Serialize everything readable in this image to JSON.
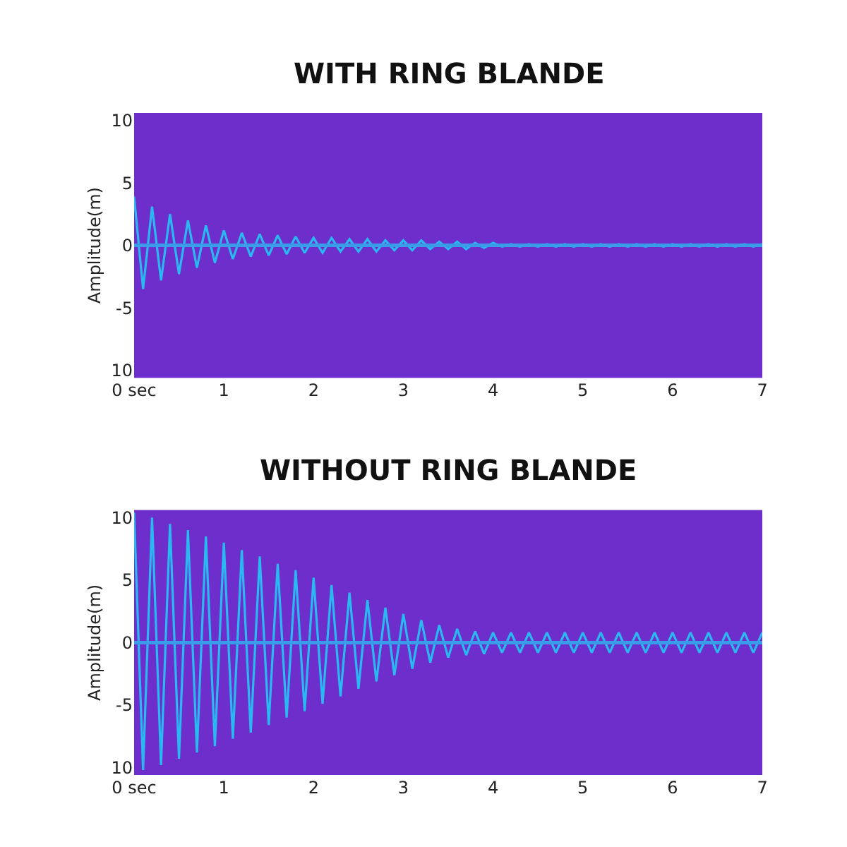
{
  "chart_data": [
    {
      "type": "line",
      "title": "WITH RING BLANDE",
      "ylabel": "Amplitude(m)",
      "x": [
        0,
        0.1,
        0.2,
        0.3,
        0.4,
        0.5,
        0.6,
        0.7,
        0.8,
        0.9,
        1.0,
        1.1,
        1.2,
        1.3,
        1.4,
        1.5,
        1.6,
        1.7,
        1.8,
        1.9,
        2.0,
        2.1,
        2.2,
        2.3,
        2.4,
        2.5,
        2.6,
        2.7,
        2.8,
        2.9,
        3.0,
        3.1,
        3.2,
        3.3,
        3.4,
        3.5,
        3.6,
        3.7,
        3.8,
        3.9,
        4.0,
        4.1,
        4.2,
        4.3,
        4.4,
        4.5,
        4.6,
        4.7,
        4.8,
        4.9,
        5.0,
        5.1,
        5.2,
        5.3,
        5.4,
        5.5,
        5.6,
        5.7,
        5.8,
        5.9,
        6.0,
        6.1,
        6.2,
        6.3,
        6.4,
        6.5,
        6.6,
        6.7,
        6.8,
        6.9,
        7.0
      ],
      "series": [
        {
          "color": "#2ab8f0",
          "values": [
            3.9,
            -3.5,
            3.1,
            -2.8,
            2.5,
            -2.3,
            2.0,
            -1.8,
            1.6,
            -1.4,
            1.2,
            -1.1,
            1.0,
            -0.9,
            0.9,
            -0.8,
            0.8,
            -0.7,
            0.7,
            -0.6,
            0.6,
            -0.6,
            0.6,
            -0.5,
            0.5,
            -0.5,
            0.5,
            -0.5,
            0.4,
            -0.4,
            0.4,
            -0.4,
            0.4,
            -0.3,
            0.3,
            -0.3,
            0.3,
            -0.3,
            0.2,
            -0.2,
            0.2,
            -0.1,
            0.1,
            -0.1,
            0.1,
            -0.1,
            0.1,
            -0.1,
            0.1,
            -0.1,
            0.1,
            -0.1,
            0.1,
            -0.1,
            0.1,
            -0.1,
            0.1,
            -0.1,
            0.1,
            -0.1,
            0.1,
            -0.1,
            0.1,
            -0.1,
            0.1,
            -0.1,
            0.1,
            -0.1,
            0.1,
            -0.1,
            0.1
          ]
        }
      ],
      "xlim": [
        0,
        7
      ],
      "ylim": [
        -10.6,
        10.6
      ],
      "xticks": [
        {
          "value": 0,
          "label": "0 sec"
        },
        1,
        2,
        3,
        4,
        5,
        6,
        7
      ],
      "yticks": [
        {
          "value": -10,
          "label": "10"
        },
        -5,
        0,
        5,
        10
      ],
      "ref_lines": [
        {
          "axis": "y",
          "value": 0,
          "color": "#3a9be8"
        }
      ],
      "grid": false,
      "marker": "none",
      "line_style": "solid"
    },
    {
      "type": "line",
      "title": "WITHOUT RING BLANDE",
      "ylabel": "Amplitude(m)",
      "x": [
        0,
        0.1,
        0.2,
        0.3,
        0.4,
        0.5,
        0.6,
        0.7,
        0.8,
        0.9,
        1.0,
        1.1,
        1.2,
        1.3,
        1.4,
        1.5,
        1.6,
        1.7,
        1.8,
        1.9,
        2.0,
        2.1,
        2.2,
        2.3,
        2.4,
        2.5,
        2.6,
        2.7,
        2.8,
        2.9,
        3.0,
        3.1,
        3.2,
        3.3,
        3.4,
        3.5,
        3.6,
        3.7,
        3.8,
        3.9,
        4.0,
        4.1,
        4.2,
        4.3,
        4.4,
        4.5,
        4.6,
        4.7,
        4.8,
        4.9,
        5.0,
        5.1,
        5.2,
        5.3,
        5.4,
        5.5,
        5.6,
        5.7,
        5.8,
        5.9,
        6.0,
        6.1,
        6.2,
        6.3,
        6.4,
        6.5,
        6.6,
        6.7,
        6.8,
        6.9,
        7.0
      ],
      "series": [
        {
          "color": "#2ab8f0",
          "values": [
            10.4,
            -10.2,
            10.0,
            -9.8,
            9.5,
            -9.3,
            9.0,
            -8.8,
            8.5,
            -8.3,
            8.0,
            -7.7,
            7.4,
            -7.2,
            6.9,
            -6.6,
            6.3,
            -6.0,
            5.8,
            -5.5,
            5.2,
            -4.9,
            4.6,
            -4.3,
            4.0,
            -3.7,
            3.4,
            -3.1,
            2.8,
            -2.6,
            2.3,
            -2.1,
            1.8,
            -1.6,
            1.4,
            -1.2,
            1.1,
            -1.0,
            0.9,
            -0.9,
            0.8,
            -0.8,
            0.8,
            -0.8,
            0.8,
            -0.8,
            0.8,
            -0.8,
            0.8,
            -0.8,
            0.8,
            -0.8,
            0.8,
            -0.8,
            0.8,
            -0.8,
            0.8,
            -0.8,
            0.8,
            -0.8,
            0.8,
            -0.8,
            0.8,
            -0.8,
            0.8,
            -0.8,
            0.8,
            -0.8,
            0.8,
            -0.8,
            0.8
          ]
        }
      ],
      "xlim": [
        0,
        7
      ],
      "ylim": [
        -10.6,
        10.6
      ],
      "xticks": [
        {
          "value": 0,
          "label": "0 sec"
        },
        1,
        2,
        3,
        4,
        5,
        6,
        7
      ],
      "yticks": [
        {
          "value": -10,
          "label": "10"
        },
        -5,
        0,
        5,
        10
      ],
      "ref_lines": [
        {
          "axis": "y",
          "value": 0,
          "color": "#3a9be8"
        }
      ],
      "grid": false,
      "marker": "none",
      "line_style": "solid"
    }
  ]
}
